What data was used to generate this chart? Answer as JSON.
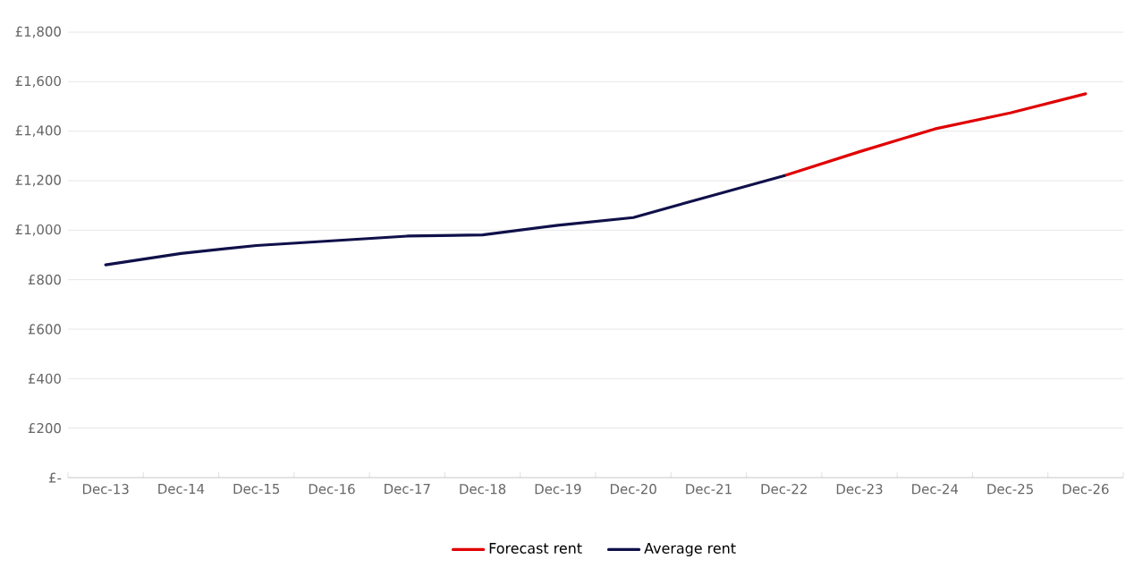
{
  "chart_data": {
    "type": "line",
    "categories": [
      "Dec-13",
      "Dec-14",
      "Dec-15",
      "Dec-16",
      "Dec-17",
      "Dec-18",
      "Dec-19",
      "Dec-20",
      "Dec-21",
      "Dec-22",
      "Dec-23",
      "Dec-24",
      "Dec-25",
      "Dec-26"
    ],
    "series": [
      {
        "name": "Forecast rent",
        "color": "#e00000",
        "values": [
          null,
          null,
          null,
          null,
          null,
          null,
          null,
          null,
          null,
          1220,
          1317,
          1409,
          1474,
          1551
        ]
      },
      {
        "name": "Average rent",
        "color": "#10104a",
        "values": [
          860,
          906,
          938,
          957,
          976,
          981,
          1020,
          1051,
          1136,
          1220,
          null,
          null,
          null,
          null
        ]
      }
    ],
    "ylim": [
      0,
      1800
    ],
    "yticks": [
      {
        "value": 0,
        "label": "£-"
      },
      {
        "value": 200,
        "label": "£200"
      },
      {
        "value": 400,
        "label": "£400"
      },
      {
        "value": 600,
        "label": "£600"
      },
      {
        "value": 800,
        "label": "£800"
      },
      {
        "value": 1000,
        "label": "£1,000"
      },
      {
        "value": 1200,
        "label": "£1,200"
      },
      {
        "value": 1400,
        "label": "£1,400"
      },
      {
        "value": 1600,
        "label": "£1,600"
      },
      {
        "value": 1800,
        "label": "£1,800"
      }
    ],
    "grid": "y",
    "legend": "bottom"
  }
}
